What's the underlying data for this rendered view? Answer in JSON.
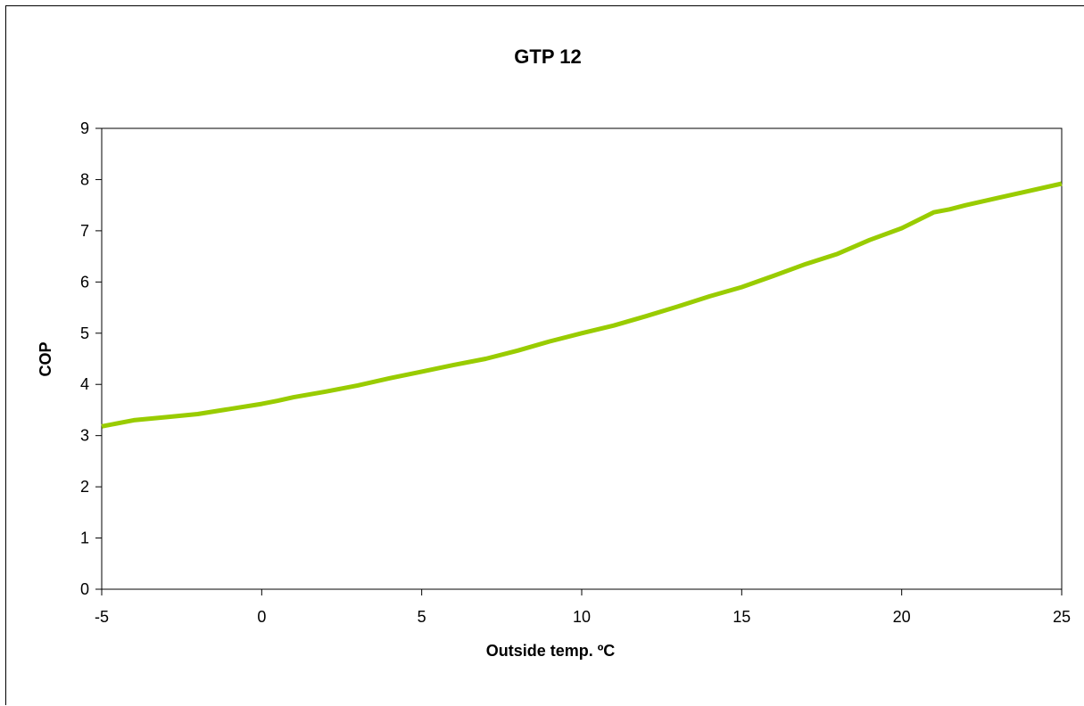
{
  "chart_data": {
    "type": "line",
    "title": "GTP 12",
    "xlabel": "Outside temp. ºC",
    "ylabel": "COP",
    "xlim": [
      -5,
      25
    ],
    "ylim": [
      0,
      9
    ],
    "x_ticks": [
      "-5",
      "0",
      "5",
      "10",
      "15",
      "20",
      "25"
    ],
    "y_ticks": [
      "0",
      "1",
      "2",
      "3",
      "4",
      "5",
      "6",
      "7",
      "8",
      "9"
    ],
    "grid": false,
    "legend": "none",
    "series": [
      {
        "color": "#99cc00",
        "x": [
          -5,
          -4,
          -3,
          -2,
          -1,
          0,
          0.5,
          1,
          2,
          3,
          4,
          5,
          6,
          7,
          8,
          9,
          10,
          11,
          12,
          13,
          14,
          15,
          16,
          17,
          18,
          19,
          20,
          21,
          21.5,
          22,
          23,
          24,
          25
        ],
        "y": [
          3.18,
          3.3,
          3.36,
          3.42,
          3.52,
          3.62,
          3.68,
          3.75,
          3.86,
          3.98,
          4.12,
          4.25,
          4.38,
          4.5,
          4.66,
          4.84,
          5.0,
          5.15,
          5.33,
          5.52,
          5.72,
          5.9,
          6.12,
          6.35,
          6.55,
          6.82,
          7.05,
          7.36,
          7.42,
          7.5,
          7.64,
          7.78,
          7.92
        ]
      }
    ]
  }
}
